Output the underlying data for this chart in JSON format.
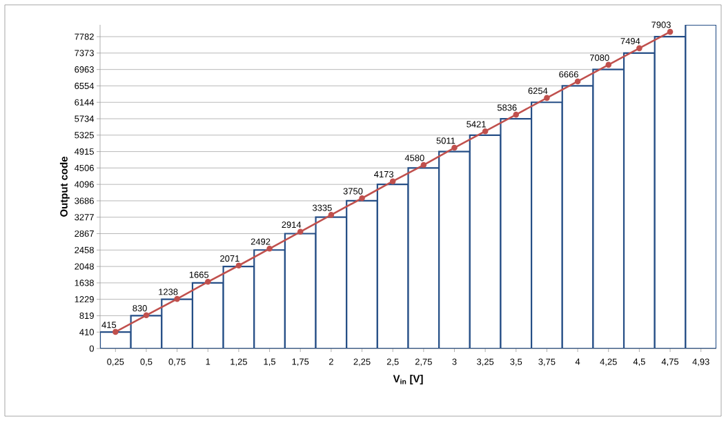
{
  "chart_data": {
    "type": "bar",
    "xlabel": "V$_{in}$ [V]",
    "ylabel": "Output code",
    "categories": [
      "0,25",
      "0,5",
      "0,75",
      "1",
      "1,25",
      "1,5",
      "1,75",
      "2",
      "2,25",
      "2,5",
      "2,75",
      "3",
      "3,25",
      "3,5",
      "3,75",
      "4",
      "4,25",
      "4,5",
      "4,75",
      "4,93"
    ],
    "series": [
      {
        "color": "#254e86",
        "values": [
          410,
          819,
          1229,
          1638,
          2048,
          2458,
          2867,
          3277,
          3686,
          4096,
          4506,
          4915,
          5325,
          5734,
          6144,
          6554,
          6963,
          7373,
          7782,
          8077
        ]
      },
      {
        "type": "line",
        "color": "#c0504d",
        "marker": "circle",
        "values": [
          415,
          830,
          1238,
          1665,
          2071,
          2492,
          2914,
          3335,
          3750,
          4173,
          4580,
          5011,
          5421,
          5836,
          6254,
          6666,
          7080,
          7494,
          7903,
          null
        ],
        "value_labels": [
          "415",
          "830",
          "1238",
          "1665",
          "2071",
          "2492",
          "2914",
          "3335",
          "3750",
          "4173",
          "4580",
          "5011",
          "5421",
          "5836",
          "6254",
          "6666",
          "7080",
          "7494",
          "7903",
          null
        ]
      }
    ],
    "ylim": [
      0,
      8077
    ],
    "yticks": [
      0,
      410,
      819,
      1229,
      1638,
      2048,
      2458,
      2867,
      3277,
      3686,
      4096,
      4506,
      4915,
      5325,
      5734,
      6144,
      6554,
      6963,
      7373,
      7782
    ],
    "grid": "y"
  }
}
